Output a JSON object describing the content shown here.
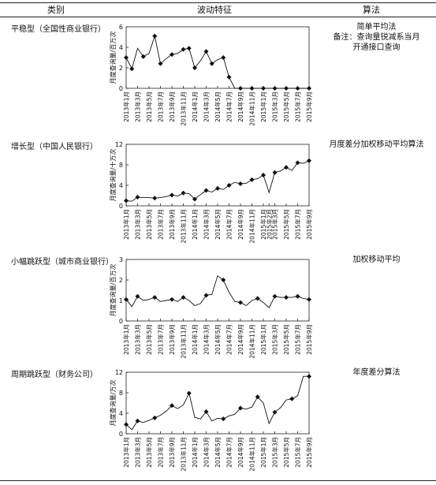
{
  "headers": {
    "category": "类别",
    "feature": "波动特征",
    "algorithm": "算法"
  },
  "rows": [
    {
      "category": "平稳型（全国性商业银行）",
      "algorithm": [
        "简单平均法",
        "备注：查询量锐减系当月",
        "开通接口查询"
      ]
    },
    {
      "category": "增长型（中国人民银行）",
      "algorithm": [
        "月度差分加权移动平均算法"
      ]
    },
    {
      "category": "小幅跳跃型（城市商业银行）",
      "algorithm": [
        "加权移动平均"
      ]
    },
    {
      "category": "周期跳跃型（财务公司）",
      "algorithm": [
        "年度差分算法"
      ]
    }
  ],
  "chart_data": [
    {
      "type": "line",
      "ylabel": "月度查询量/百万次",
      "ylim": [
        0,
        6
      ],
      "yticks": [
        0,
        2,
        4,
        6
      ],
      "x": [
        "2013年1月",
        "2013年2月",
        "2013年3月",
        "2013年4月",
        "2013年5月",
        "2013年6月",
        "2013年7月",
        "2013年8月",
        "2013年9月",
        "2013年10月",
        "2013年11月",
        "2013年12月",
        "2014年1月",
        "2014年2月",
        "2014年3月",
        "2014年4月",
        "2014年5月",
        "2014年6月",
        "2014年7月",
        "2014年8月",
        "2014年9月",
        "2014年10月",
        "2014年11月",
        "2014年12月",
        "2015年1月",
        "2015年2月",
        "2015年3月",
        "2015年4月",
        "2015年5月",
        "2015年6月",
        "2015年7月",
        "2015年8月",
        "2015年9月"
      ],
      "xtick_labels": [
        "2013年1月",
        "2013年3月",
        "2013年5月",
        "2013年7月",
        "2013年9月",
        "2013年11月",
        "2014年1月",
        "2014年3月",
        "2014年5月",
        "2014年7月",
        "2014年9月",
        "2014年11月",
        "2015年1月",
        "2015年3月",
        "2015年5月",
        "2015年7月",
        "2015年9月"
      ],
      "values": [
        3.0,
        1.9,
        3.9,
        3.1,
        3.4,
        5.1,
        2.4,
        2.9,
        3.3,
        3.4,
        3.8,
        3.9,
        2.0,
        2.7,
        3.6,
        2.4,
        2.8,
        3.0,
        1.1,
        0,
        0,
        0,
        0,
        0,
        0,
        0,
        0,
        0,
        0,
        0,
        0,
        0,
        0
      ],
      "markers": [
        0,
        1,
        3,
        5,
        6,
        8,
        10,
        11,
        12,
        14,
        15,
        17,
        18,
        20,
        22,
        24,
        26,
        28,
        30,
        32
      ]
    },
    {
      "type": "line",
      "ylabel": "月度查询量/十万次",
      "ylim": [
        0,
        12
      ],
      "yticks": [
        0,
        4,
        8,
        12
      ],
      "x": [
        "2013年1月",
        "2013年2月",
        "2013年3月",
        "2013年4月",
        "2013年5月",
        "2013年6月",
        "2013年7月",
        "2013年8月",
        "2013年9月",
        "2013年10月",
        "2013年11月",
        "2013年12月",
        "2014年1月",
        "2014年2月",
        "2014年3月",
        "2014年4月",
        "2014年5月",
        "2014年6月",
        "2014年7月",
        "2014年8月",
        "2014年9月",
        "2014年10月",
        "2014年11月",
        "2014年12月",
        "2015年1月",
        "2015年2月",
        "2015年3月",
        "2015年4月",
        "2015年5月",
        "2015年6月",
        "2015年7月",
        "2015年8月",
        "2015年9月"
      ],
      "xtick_labels": [
        "2013年1月",
        "2013年3月",
        "2013年5月",
        "2013年7月",
        "2013年9月",
        "2013年11月",
        "2014年1月",
        "2014年3月",
        "2014年5月",
        "2014年7月",
        "2014年9月",
        "2014年11月",
        "2015年1月",
        "2015年2月",
        "2015年3月",
        "2015年5月",
        "2015年7月",
        "2015年9月"
      ],
      "values": [
        1.0,
        0.9,
        1.7,
        1.6,
        1.6,
        1.5,
        1.6,
        1.8,
        2.1,
        1.9,
        2.5,
        2.4,
        1.3,
        2.2,
        3.0,
        2.7,
        3.4,
        3.2,
        4.0,
        4.6,
        4.3,
        4.4,
        5.1,
        5.3,
        6.0,
        2.6,
        6.5,
        6.8,
        7.5,
        6.9,
        8.4,
        8.3,
        8.8
      ],
      "markers": [
        0,
        2,
        5,
        8,
        10,
        12,
        14,
        16,
        18,
        20,
        22,
        24,
        26,
        28,
        30,
        32
      ]
    },
    {
      "type": "line",
      "ylabel": "月度查询量/百万次",
      "ylim": [
        0,
        3
      ],
      "yticks": [
        0,
        1,
        2,
        3
      ],
      "x": [
        "2013年1月",
        "2013年2月",
        "2013年3月",
        "2013年4月",
        "2013年5月",
        "2013年6月",
        "2013年7月",
        "2013年8月",
        "2013年9月",
        "2013年10月",
        "2013年11月",
        "2013年12月",
        "2014年1月",
        "2014年2月",
        "2014年3月",
        "2014年4月",
        "2014年5月",
        "2014年6月",
        "2014年7月",
        "2014年8月",
        "2014年9月",
        "2014年10月",
        "2014年11月",
        "2014年12月",
        "2015年1月",
        "2015年2月",
        "2015年3月",
        "2015年4月",
        "2015年5月",
        "2015年6月",
        "2015年7月",
        "2015年8月",
        "2015年9月"
      ],
      "xtick_labels": [
        "2013年1月",
        "2013年3月",
        "2013年5月",
        "2013年7月",
        "2013年9月",
        "2013年11月",
        "2014年1月",
        "2014年3月",
        "2014年5月",
        "2014年7月",
        "2014年9月",
        "2014年11月",
        "2015年1月",
        "2015年3月",
        "2015年5月",
        "2015年7月",
        "2015年9月"
      ],
      "values": [
        1.05,
        0.7,
        1.2,
        1.0,
        1.05,
        1.15,
        0.95,
        1.0,
        1.05,
        0.95,
        1.15,
        1.0,
        0.75,
        0.85,
        1.25,
        1.3,
        2.2,
        2.0,
        1.4,
        0.95,
        0.9,
        0.75,
        1.0,
        1.1,
        0.9,
        0.65,
        1.2,
        1.15,
        1.15,
        1.15,
        1.2,
        1.1,
        1.05
      ],
      "markers": [
        0,
        2,
        5,
        8,
        10,
        14,
        17,
        20,
        23,
        26,
        28,
        30,
        32
      ]
    },
    {
      "type": "line",
      "ylabel": "月度查询量/万次",
      "ylim": [
        0,
        12
      ],
      "yticks": [
        0,
        4,
        8,
        12
      ],
      "x": [
        "2013年1月",
        "2013年2月",
        "2013年3月",
        "2013年4月",
        "2013年5月",
        "2013年6月",
        "2013年7月",
        "2013年8月",
        "2013年9月",
        "2013年10月",
        "2013年11月",
        "2013年12月",
        "2014年1月",
        "2014年2月",
        "2014年3月",
        "2014年4月",
        "2014年5月",
        "2014年6月",
        "2014年7月",
        "2014年8月",
        "2014年9月",
        "2014年10月",
        "2014年11月",
        "2014年12月",
        "2015年1月",
        "2015年2月",
        "2015年3月",
        "2015年4月",
        "2015年5月",
        "2015年6月",
        "2015年7月",
        "2015年8月",
        "2015年9月"
      ],
      "xtick_labels": [
        "2013年1月",
        "2013年3月",
        "2013年5月",
        "2013年7月",
        "2013年9月",
        "2013年11月",
        "2014年1月",
        "2014年3月",
        "2014年5月",
        "2014年7月",
        "2014年9月",
        "2014年11月",
        "2015年1月",
        "2015年3月",
        "2015年5月",
        "2015年7月",
        "2015年9月"
      ],
      "values": [
        1.8,
        0.8,
        2.5,
        2.2,
        2.6,
        3.1,
        3.6,
        4.4,
        5.5,
        4.9,
        5.6,
        7.9,
        3.2,
        2.9,
        4.3,
        2.5,
        3.0,
        2.9,
        3.5,
        3.8,
        5.0,
        4.8,
        5.2,
        7.2,
        6.0,
        2.0,
        4.2,
        5.1,
        6.6,
        6.8,
        7.4,
        11.2,
        11.2
      ],
      "markers": [
        0,
        2,
        5,
        8,
        11,
        14,
        17,
        20,
        23,
        26,
        29,
        32
      ]
    }
  ]
}
